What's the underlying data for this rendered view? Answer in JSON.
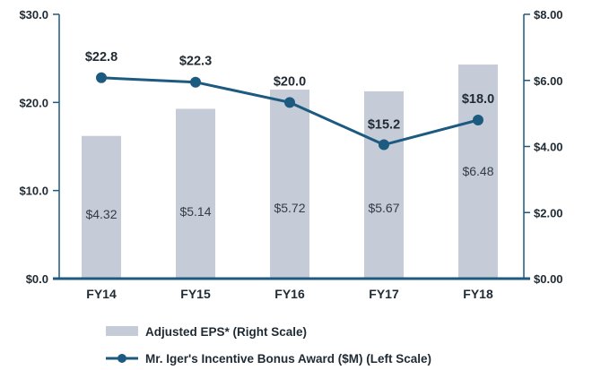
{
  "chart_data": {
    "type": "bar",
    "categories": [
      "FY14",
      "FY15",
      "FY16",
      "FY17",
      "FY18"
    ],
    "series": [
      {
        "name": "Adjusted EPS* (Right Scale)",
        "type": "bar",
        "axis": "right",
        "values": [
          4.32,
          5.14,
          5.72,
          5.67,
          6.48
        ],
        "labels": [
          "$4.32",
          "$5.14",
          "$5.72",
          "$5.67",
          "$6.48"
        ],
        "color": "#c5ccd8"
      },
      {
        "name": "Mr. Iger's Incentive Bonus Award ($M) (Left Scale)",
        "type": "line",
        "axis": "left",
        "values": [
          22.8,
          22.3,
          20.0,
          15.2,
          18.0
        ],
        "labels": [
          "$22.8",
          "$22.3",
          "$20.0",
          "$15.2",
          "$18.0"
        ],
        "color": "#1c5a80"
      }
    ],
    "left_axis": {
      "ylim": [
        0,
        30
      ],
      "ticks": [
        0,
        10,
        20,
        30
      ],
      "tick_labels": [
        "$0.0",
        "$10.0",
        "$20.0",
        "$30.0"
      ]
    },
    "right_axis": {
      "ylim": [
        0,
        8
      ],
      "ticks": [
        0,
        2,
        4,
        6,
        8
      ],
      "tick_labels": [
        "$0.00",
        "$2.00",
        "$4.00",
        "$6.00",
        "$8.00"
      ]
    },
    "grid": false,
    "legend": "bottom-left"
  }
}
